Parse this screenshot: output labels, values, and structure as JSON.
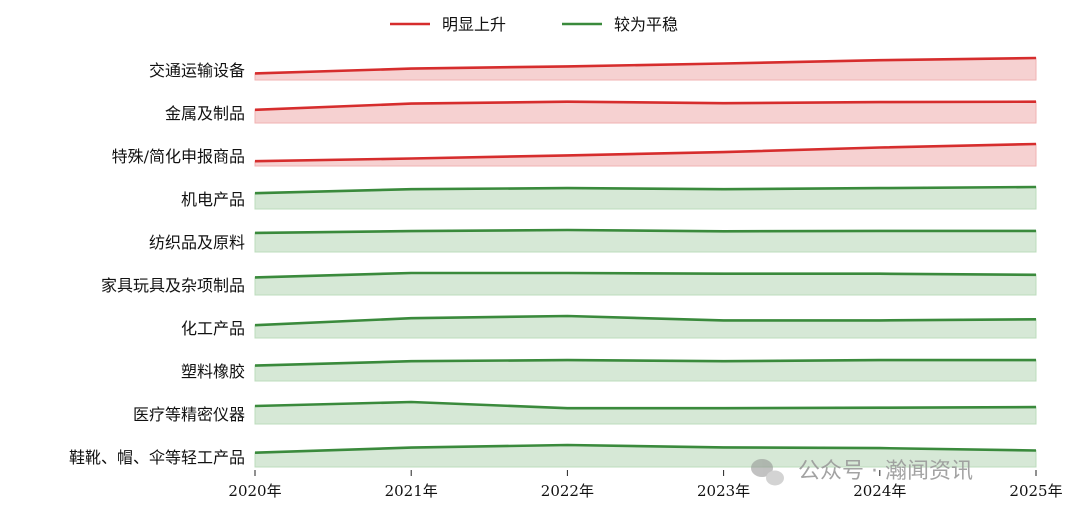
{
  "chart_data": {
    "type": "area",
    "x": [
      "2020年",
      "2021年",
      "2022年",
      "2023年",
      "2024年",
      "2025年"
    ],
    "legend": [
      {
        "name": "明显上升",
        "color": "#d62d2d"
      },
      {
        "name": "较为平稳",
        "color": "#3a8a3c"
      }
    ],
    "legend_position": "top-center",
    "grid": false,
    "rows": [
      {
        "label": "交通运输设备",
        "group": 0,
        "values": [
          0.3,
          0.52,
          0.62,
          0.75,
          0.9,
          1.0
        ]
      },
      {
        "label": "金属及制品",
        "group": 0,
        "values": [
          0.6,
          0.88,
          0.97,
          0.9,
          0.95,
          0.97
        ]
      },
      {
        "label": "特殊/简化申报商品",
        "group": 0,
        "values": [
          0.22,
          0.34,
          0.48,
          0.63,
          0.84,
          1.0
        ]
      },
      {
        "label": "机电产品",
        "group": 1,
        "values": [
          0.72,
          0.9,
          0.95,
          0.9,
          0.95,
          1.0
        ]
      },
      {
        "label": "纺织品及原料",
        "group": 1,
        "values": [
          0.87,
          0.95,
          1.0,
          0.94,
          0.96,
          0.96
        ]
      },
      {
        "label": "家具玩具及杂项制品",
        "group": 1,
        "values": [
          0.8,
          1.0,
          1.0,
          0.97,
          0.97,
          0.92
        ]
      },
      {
        "label": "化工产品",
        "group": 1,
        "values": [
          0.58,
          0.9,
          1.0,
          0.8,
          0.8,
          0.85
        ]
      },
      {
        "label": "塑料橡胶",
        "group": 1,
        "values": [
          0.7,
          0.9,
          0.95,
          0.9,
          0.95,
          0.95
        ]
      },
      {
        "label": "医疗等精密仪器",
        "group": 1,
        "values": [
          0.82,
          1.0,
          0.72,
          0.72,
          0.74,
          0.77
        ]
      },
      {
        "label": "鞋靴、帽、伞等轻工产品",
        "group": 1,
        "values": [
          0.65,
          0.88,
          1.0,
          0.89,
          0.86,
          0.75
        ]
      }
    ]
  },
  "watermark": {
    "text": "公众号 · 瀚闻资讯",
    "icon": "wechat-icon"
  }
}
